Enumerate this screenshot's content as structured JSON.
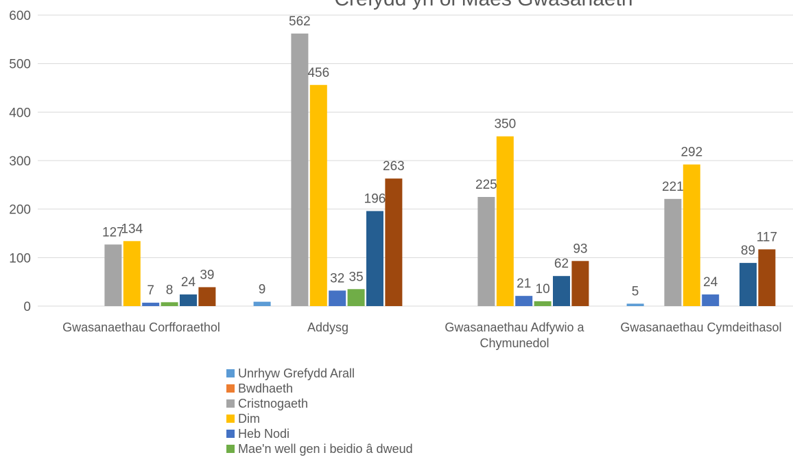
{
  "chart_data": {
    "type": "bar",
    "title": "Crefydd yn ôl Maes Gwasanaeth",
    "categories": [
      "Gwasanaethau Corfforaethol",
      "Addysg",
      "Gwasanaethau Adfywio a Chymunedol",
      "Gwasanaethau Cymdeithasol"
    ],
    "series": [
      {
        "name": "Unrhyw Grefydd Arall",
        "color": "#5b9bd5",
        "values": [
          null,
          9,
          null,
          5
        ]
      },
      {
        "name": "Bwdhaeth",
        "color": "#ed7d31",
        "values": [
          null,
          null,
          null,
          null
        ]
      },
      {
        "name": "Cristnogaeth",
        "color": "#a5a5a5",
        "values": [
          127,
          562,
          225,
          221
        ]
      },
      {
        "name": "Dim",
        "color": "#ffc000",
        "values": [
          134,
          456,
          350,
          292
        ]
      },
      {
        "name": "Heb Nodi",
        "color": "#4472c4",
        "values": [
          7,
          32,
          21,
          24
        ]
      },
      {
        "name": "Mae'n well gen i beidio â dweud",
        "color": "#70ad47",
        "values": [
          8,
          35,
          10,
          null
        ]
      },
      {
        "color": "#255e91",
        "values": [
          24,
          196,
          62,
          89
        ]
      },
      {
        "color": "#9e480e",
        "values": [
          39,
          263,
          93,
          117
        ]
      }
    ],
    "ylim": [
      0,
      600
    ],
    "yticks": [
      0,
      100,
      200,
      300,
      400,
      500,
      600
    ],
    "grid": true,
    "legend": "bottom"
  }
}
